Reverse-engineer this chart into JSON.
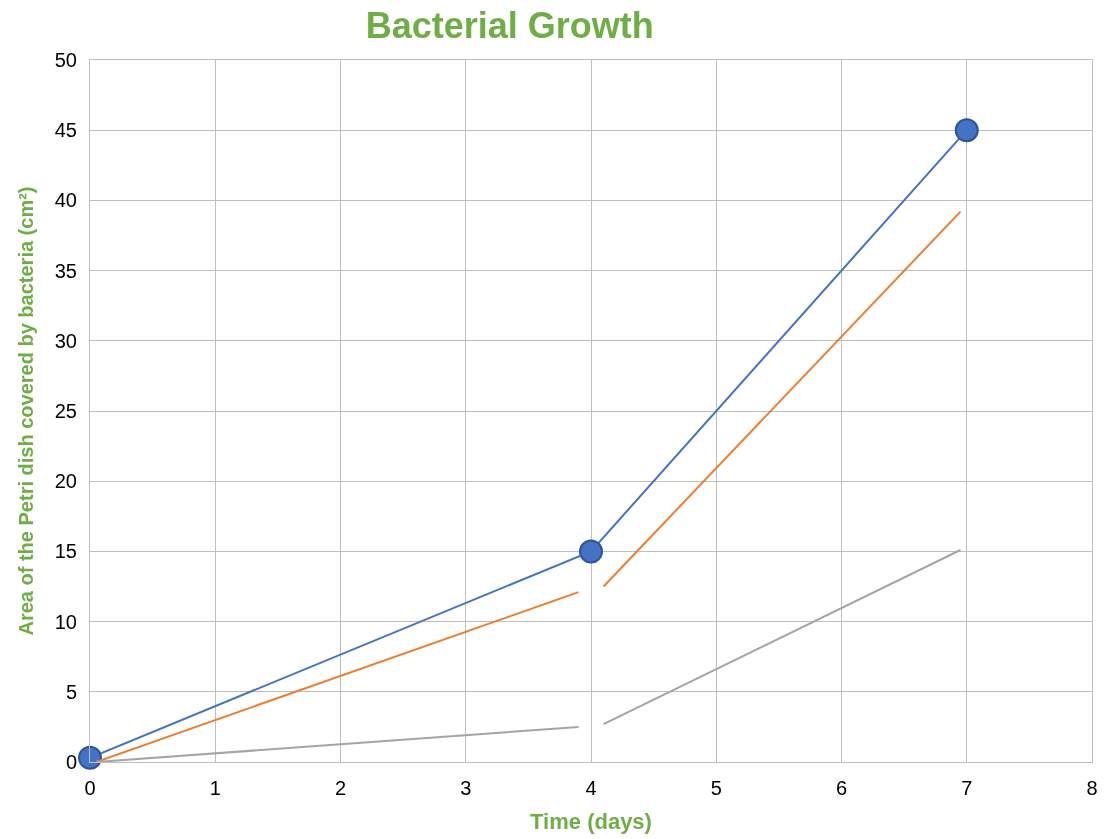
{
  "chart_data": {
    "type": "line",
    "title": "Bacterial Growth",
    "xlabel": "Time (days)",
    "ylabel": "Area of the Petri dish covered by bacteria (cm²)",
    "series": [
      {
        "color": "#4472c4",
        "x": [
          0,
          4,
          7
        ],
        "values": [
          0.3,
          15,
          45
        ],
        "marker": "circle"
      },
      {
        "color": "#ed7d31",
        "x": [
          0.05,
          3.9,
          4.0,
          4.1,
          6.95
        ],
        "values": [
          0,
          12.1,
          null,
          12.5,
          39.2
        ],
        "marker": "none"
      },
      {
        "color": "#a5a5a5",
        "x": [
          0.05,
          3.9,
          4.0,
          4.1,
          6.95
        ],
        "values": [
          0,
          2.5,
          null,
          2.7,
          15.1
        ],
        "marker": "none"
      }
    ],
    "xlim": [
      0,
      8
    ],
    "xticks": [
      0,
      1,
      2,
      3,
      4,
      5,
      6,
      7,
      8
    ],
    "ylim": [
      0,
      50
    ],
    "yticks": [
      0,
      5,
      10,
      15,
      20,
      25,
      30,
      35,
      40,
      45,
      50
    ],
    "grid": true
  }
}
